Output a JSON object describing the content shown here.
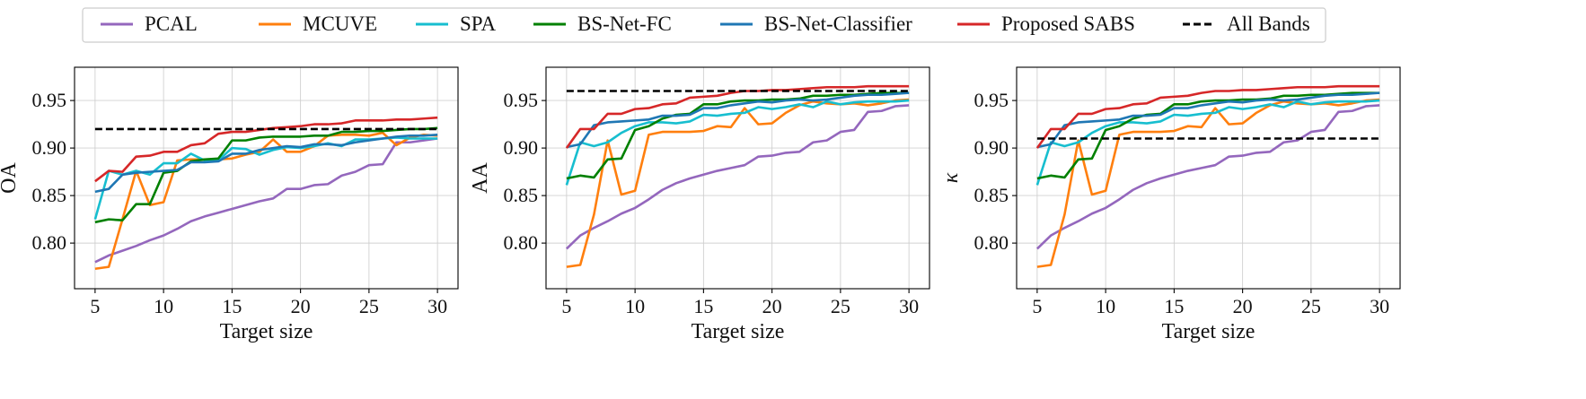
{
  "legend": {
    "items": [
      {
        "name": "PCAL",
        "color": "#9467bd",
        "dashed": false
      },
      {
        "name": "MCUVE",
        "color": "#ff7f0e",
        "dashed": false
      },
      {
        "name": "SPA",
        "color": "#17becf",
        "dashed": false
      },
      {
        "name": "BS-Net-FC",
        "color": "#008000",
        "dashed": false
      },
      {
        "name": "BS-Net-Classifier",
        "color": "#1f77b4",
        "dashed": false
      },
      {
        "name": "Proposed SABS",
        "color": "#d62728",
        "dashed": false
      },
      {
        "name": "All Bands",
        "color": "#000000",
        "dashed": true
      }
    ]
  },
  "chart_data": [
    {
      "type": "line",
      "xlabel": "Target size",
      "ylabel": "OA",
      "xlim": [
        3.5,
        31.5
      ],
      "ylim": [
        0.752,
        0.985
      ],
      "xticks": [
        5,
        10,
        15,
        20,
        25,
        30
      ],
      "yticks": [
        0.8,
        0.85,
        0.9,
        0.95
      ],
      "grid": true,
      "x": [
        5,
        6,
        7,
        8,
        9,
        10,
        11,
        12,
        13,
        14,
        15,
        16,
        17,
        18,
        19,
        20,
        21,
        22,
        23,
        24,
        25,
        26,
        27,
        28,
        29,
        30
      ],
      "series": [
        {
          "name": "PCAL",
          "values": [
            0.78,
            0.787,
            0.792,
            0.797,
            0.803,
            0.808,
            0.815,
            0.823,
            0.828,
            0.832,
            0.836,
            0.84,
            0.844,
            0.847,
            0.857,
            0.857,
            0.861,
            0.862,
            0.871,
            0.875,
            0.882,
            0.883,
            0.906,
            0.906,
            0.908,
            0.91
          ]
        },
        {
          "name": "MCUVE",
          "values": [
            0.773,
            0.775,
            0.825,
            0.876,
            0.84,
            0.843,
            0.887,
            0.888,
            0.888,
            0.888,
            0.889,
            0.893,
            0.896,
            0.909,
            0.896,
            0.896,
            0.902,
            0.913,
            0.914,
            0.914,
            0.913,
            0.916,
            0.903,
            0.911,
            0.914,
            0.913
          ]
        },
        {
          "name": "SPA",
          "values": [
            0.825,
            0.876,
            0.872,
            0.876,
            0.872,
            0.884,
            0.884,
            0.894,
            0.887,
            0.887,
            0.9,
            0.899,
            0.893,
            0.898,
            0.901,
            0.9,
            0.902,
            0.905,
            0.902,
            0.909,
            0.909,
            0.91,
            0.911,
            0.91,
            0.91,
            0.91
          ]
        },
        {
          "name": "BS-Net-FC",
          "values": [
            0.822,
            0.825,
            0.824,
            0.841,
            0.841,
            0.874,
            0.876,
            0.886,
            0.888,
            0.889,
            0.908,
            0.908,
            0.911,
            0.912,
            0.912,
            0.912,
            0.913,
            0.913,
            0.917,
            0.917,
            0.918,
            0.918,
            0.919,
            0.92,
            0.92,
            0.921
          ]
        },
        {
          "name": "BS-Net-Classifier",
          "values": [
            0.854,
            0.857,
            0.872,
            0.874,
            0.875,
            0.876,
            0.877,
            0.885,
            0.885,
            0.886,
            0.894,
            0.894,
            0.898,
            0.9,
            0.902,
            0.901,
            0.904,
            0.904,
            0.903,
            0.906,
            0.908,
            0.91,
            0.912,
            0.913,
            0.913,
            0.914
          ]
        },
        {
          "name": "Proposed SABS",
          "values": [
            0.865,
            0.876,
            0.875,
            0.891,
            0.892,
            0.896,
            0.896,
            0.903,
            0.905,
            0.915,
            0.917,
            0.917,
            0.919,
            0.921,
            0.922,
            0.923,
            0.925,
            0.925,
            0.926,
            0.929,
            0.929,
            0.929,
            0.93,
            0.93,
            0.931,
            0.932
          ]
        },
        {
          "name": "All Bands",
          "values": [
            0.92,
            0.92,
            0.92,
            0.92,
            0.92,
            0.92,
            0.92,
            0.92,
            0.92,
            0.92,
            0.92,
            0.92,
            0.92,
            0.92,
            0.92,
            0.92,
            0.92,
            0.92,
            0.92,
            0.92,
            0.92,
            0.92,
            0.92,
            0.92,
            0.92,
            0.92
          ]
        }
      ]
    },
    {
      "type": "line",
      "xlabel": "Target size",
      "ylabel": "AA",
      "xlim": [
        3.5,
        31.5
      ],
      "ylim": [
        0.752,
        0.985
      ],
      "xticks": [
        5,
        10,
        15,
        20,
        25,
        30
      ],
      "yticks": [
        0.8,
        0.85,
        0.9,
        0.95
      ],
      "grid": true,
      "x": [
        5,
        6,
        7,
        8,
        9,
        10,
        11,
        12,
        13,
        14,
        15,
        16,
        17,
        18,
        19,
        20,
        21,
        22,
        23,
        24,
        25,
        26,
        27,
        28,
        29,
        30
      ],
      "series": [
        {
          "name": "PCAL",
          "values": [
            0.794,
            0.808,
            0.816,
            0.823,
            0.831,
            0.837,
            0.846,
            0.856,
            0.863,
            0.868,
            0.872,
            0.876,
            0.879,
            0.882,
            0.891,
            0.892,
            0.895,
            0.896,
            0.906,
            0.908,
            0.917,
            0.919,
            0.938,
            0.939,
            0.944,
            0.945
          ]
        },
        {
          "name": "MCUVE",
          "values": [
            0.775,
            0.777,
            0.83,
            0.908,
            0.851,
            0.855,
            0.914,
            0.917,
            0.917,
            0.917,
            0.918,
            0.923,
            0.922,
            0.942,
            0.925,
            0.926,
            0.937,
            0.945,
            0.949,
            0.947,
            0.946,
            0.947,
            0.945,
            0.947,
            0.95,
            0.951
          ]
        },
        {
          "name": "SPA",
          "values": [
            0.861,
            0.906,
            0.902,
            0.906,
            0.916,
            0.923,
            0.927,
            0.927,
            0.926,
            0.928,
            0.935,
            0.934,
            0.936,
            0.937,
            0.943,
            0.941,
            0.943,
            0.946,
            0.943,
            0.949,
            0.946,
            0.948,
            0.949,
            0.949,
            0.949,
            0.95
          ]
        },
        {
          "name": "BS-Net-FC",
          "values": [
            0.868,
            0.871,
            0.869,
            0.888,
            0.889,
            0.919,
            0.923,
            0.931,
            0.935,
            0.936,
            0.946,
            0.946,
            0.949,
            0.95,
            0.95,
            0.951,
            0.951,
            0.952,
            0.955,
            0.955,
            0.956,
            0.956,
            0.957,
            0.958,
            0.958,
            0.958
          ]
        },
        {
          "name": "BS-Net-Classifier",
          "values": [
            0.901,
            0.904,
            0.924,
            0.927,
            0.928,
            0.929,
            0.93,
            0.934,
            0.934,
            0.935,
            0.942,
            0.942,
            0.945,
            0.947,
            0.949,
            0.948,
            0.95,
            0.951,
            0.95,
            0.951,
            0.953,
            0.955,
            0.956,
            0.956,
            0.957,
            0.958
          ]
        },
        {
          "name": "Proposed SABS",
          "values": [
            0.9,
            0.92,
            0.92,
            0.936,
            0.936,
            0.941,
            0.942,
            0.946,
            0.947,
            0.953,
            0.954,
            0.955,
            0.958,
            0.96,
            0.96,
            0.961,
            0.961,
            0.962,
            0.963,
            0.964,
            0.964,
            0.964,
            0.965,
            0.965,
            0.965,
            0.965
          ]
        },
        {
          "name": "All Bands",
          "values": [
            0.96,
            0.96,
            0.96,
            0.96,
            0.96,
            0.96,
            0.96,
            0.96,
            0.96,
            0.96,
            0.96,
            0.96,
            0.96,
            0.96,
            0.96,
            0.96,
            0.96,
            0.96,
            0.96,
            0.96,
            0.96,
            0.96,
            0.96,
            0.96,
            0.96,
            0.96
          ]
        }
      ]
    },
    {
      "type": "line",
      "xlabel": "Target size",
      "ylabel": "κ",
      "xlim": [
        3.5,
        31.5
      ],
      "ylim": [
        0.752,
        0.985
      ],
      "xticks": [
        5,
        10,
        15,
        20,
        25,
        30
      ],
      "yticks": [
        0.8,
        0.85,
        0.9,
        0.95
      ],
      "grid": true,
      "x": [
        5,
        6,
        7,
        8,
        9,
        10,
        11,
        12,
        13,
        14,
        15,
        16,
        17,
        18,
        19,
        20,
        21,
        22,
        23,
        24,
        25,
        26,
        27,
        28,
        29,
        30
      ],
      "series": [
        {
          "name": "PCAL",
          "values": [
            0.794,
            0.808,
            0.816,
            0.823,
            0.831,
            0.837,
            0.846,
            0.856,
            0.863,
            0.868,
            0.872,
            0.876,
            0.879,
            0.882,
            0.891,
            0.892,
            0.895,
            0.896,
            0.906,
            0.908,
            0.917,
            0.919,
            0.938,
            0.939,
            0.944,
            0.945
          ]
        },
        {
          "name": "MCUVE",
          "values": [
            0.775,
            0.777,
            0.83,
            0.908,
            0.851,
            0.855,
            0.914,
            0.917,
            0.917,
            0.917,
            0.918,
            0.923,
            0.922,
            0.942,
            0.925,
            0.926,
            0.937,
            0.945,
            0.949,
            0.947,
            0.946,
            0.947,
            0.945,
            0.947,
            0.95,
            0.951
          ]
        },
        {
          "name": "SPA",
          "values": [
            0.861,
            0.906,
            0.902,
            0.906,
            0.916,
            0.923,
            0.927,
            0.927,
            0.926,
            0.928,
            0.935,
            0.934,
            0.936,
            0.937,
            0.943,
            0.941,
            0.943,
            0.946,
            0.943,
            0.949,
            0.946,
            0.948,
            0.949,
            0.949,
            0.949,
            0.95
          ]
        },
        {
          "name": "BS-Net-FC",
          "values": [
            0.868,
            0.871,
            0.869,
            0.888,
            0.889,
            0.919,
            0.923,
            0.931,
            0.935,
            0.936,
            0.946,
            0.946,
            0.949,
            0.95,
            0.95,
            0.951,
            0.951,
            0.952,
            0.955,
            0.955,
            0.956,
            0.956,
            0.957,
            0.958,
            0.958,
            0.958
          ]
        },
        {
          "name": "BS-Net-Classifier",
          "values": [
            0.901,
            0.904,
            0.924,
            0.927,
            0.928,
            0.929,
            0.93,
            0.934,
            0.934,
            0.935,
            0.942,
            0.942,
            0.945,
            0.947,
            0.949,
            0.948,
            0.95,
            0.951,
            0.95,
            0.951,
            0.953,
            0.955,
            0.956,
            0.956,
            0.957,
            0.958
          ]
        },
        {
          "name": "Proposed SABS",
          "values": [
            0.9,
            0.92,
            0.92,
            0.936,
            0.936,
            0.941,
            0.942,
            0.946,
            0.947,
            0.953,
            0.954,
            0.955,
            0.958,
            0.96,
            0.96,
            0.961,
            0.961,
            0.962,
            0.963,
            0.964,
            0.964,
            0.964,
            0.965,
            0.965,
            0.965,
            0.965
          ]
        },
        {
          "name": "All Bands",
          "values": [
            0.91,
            0.91,
            0.91,
            0.91,
            0.91,
            0.91,
            0.91,
            0.91,
            0.91,
            0.91,
            0.91,
            0.91,
            0.91,
            0.91,
            0.91,
            0.91,
            0.91,
            0.91,
            0.91,
            0.91,
            0.91,
            0.91,
            0.91,
            0.91,
            0.91,
            0.91
          ]
        }
      ]
    }
  ]
}
